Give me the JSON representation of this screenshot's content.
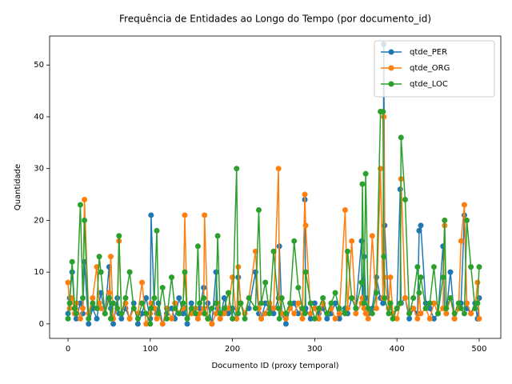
{
  "chart_data": {
    "type": "line",
    "title": "Frequência de Entidades ao Longo do Tempo (por documento_id)",
    "x_label": "Documento ID (proxy temporal)",
    "y_label": "Quantidade",
    "legend": "upper right",
    "xlim": [
      -22.4,
      526.3
    ],
    "ylim": [
      -2.8,
      55.6
    ],
    "xticks": [
      0,
      100,
      200,
      300,
      400,
      500
    ],
    "yticks": [
      0,
      10,
      20,
      30,
      40,
      50
    ],
    "x": [
      0,
      2,
      5,
      8,
      10,
      15,
      18,
      20,
      25,
      30,
      35,
      38,
      40,
      45,
      50,
      52,
      55,
      60,
      62,
      65,
      70,
      75,
      80,
      85,
      90,
      95,
      100,
      101,
      105,
      108,
      110,
      115,
      120,
      126,
      130,
      135,
      140,
      142,
      145,
      150,
      155,
      158,
      160,
      165,
      166,
      170,
      175,
      180,
      182,
      185,
      190,
      195,
      200,
      205,
      207,
      210,
      215,
      220,
      228,
      232,
      235,
      240,
      245,
      250,
      256,
      257,
      260,
      265,
      270,
      275,
      280,
      285,
      288,
      289,
      295,
      300,
      305,
      310,
      315,
      320,
      325,
      330,
      337,
      340,
      345,
      350,
      357,
      358,
      360,
      362,
      365,
      370,
      375,
      380,
      383,
      384,
      385,
      390,
      392,
      395,
      400,
      404,
      405,
      410,
      415,
      420,
      425,
      427,
      429,
      435,
      440,
      445,
      450,
      456,
      458,
      460,
      465,
      470,
      475,
      478,
      482,
      485,
      490,
      495,
      498,
      500
    ],
    "series": [
      {
        "name": "qtde_PER",
        "color": "#1f77b4",
        "values": [
          2,
          5,
          10,
          3,
          1,
          4,
          2,
          12,
          0,
          3,
          1,
          4,
          6,
          2,
          11,
          3,
          0,
          5,
          2,
          1,
          3,
          1,
          4,
          0,
          2,
          5,
          1,
          21,
          3,
          2,
          4,
          0,
          2,
          3,
          1,
          5,
          2,
          3,
          0,
          4,
          2,
          1,
          3,
          7,
          2,
          4,
          0,
          10,
          3,
          1,
          5,
          2,
          3,
          1,
          9,
          4,
          2,
          3,
          10,
          2,
          1,
          4,
          3,
          2,
          5,
          15,
          2,
          0,
          3,
          4,
          2,
          3,
          24,
          3,
          1,
          4,
          2,
          3,
          1,
          2,
          4,
          1,
          3,
          2,
          5,
          3,
          16,
          4,
          13,
          5,
          2,
          3,
          9,
          5,
          4,
          54,
          19,
          3,
          4,
          2,
          3,
          26,
          4,
          5,
          1,
          3,
          2,
          18,
          19,
          4,
          3,
          1,
          2,
          15,
          3,
          2,
          10,
          1,
          3,
          4,
          21,
          3,
          2,
          4,
          1,
          5
        ]
      },
      {
        "name": "qtde_ORG",
        "color": "#ff7f0e",
        "values": [
          8,
          3,
          5,
          2,
          4,
          1,
          3,
          24,
          2,
          5,
          11,
          4,
          3,
          2,
          6,
          13,
          1,
          3,
          16,
          2,
          4,
          1,
          3,
          2,
          8,
          0,
          2,
          4,
          3,
          1,
          2,
          0,
          3,
          1,
          4,
          2,
          3,
          21,
          1,
          2,
          3,
          1,
          2,
          3,
          21,
          1,
          0,
          2,
          4,
          1,
          2,
          3,
          9,
          1,
          11,
          4,
          2,
          5,
          14,
          3,
          1,
          2,
          4,
          3,
          30,
          5,
          2,
          1,
          3,
          2,
          4,
          1,
          25,
          19,
          2,
          3,
          1,
          4,
          2,
          3,
          1,
          2,
          22,
          3,
          16,
          2,
          4,
          5,
          3,
          2,
          1,
          17,
          3,
          30,
          5,
          40,
          9,
          3,
          9,
          2,
          1,
          4,
          28,
          5,
          2,
          3,
          1,
          6,
          2,
          3,
          1,
          4,
          2,
          3,
          19,
          2,
          5,
          1,
          3,
          16,
          23,
          4,
          2,
          3,
          8,
          1
        ]
      },
      {
        "name": "qtde_LOC",
        "color": "#2ca02c",
        "values": [
          1,
          4,
          12,
          3,
          2,
          23,
          5,
          20,
          1,
          4,
          3,
          13,
          10,
          2,
          5,
          1,
          4,
          3,
          17,
          2,
          5,
          10,
          3,
          1,
          4,
          2,
          0,
          3,
          5,
          18,
          2,
          7,
          1,
          9,
          3,
          2,
          4,
          10,
          1,
          3,
          2,
          15,
          4,
          5,
          2,
          1,
          3,
          4,
          17,
          2,
          3,
          6,
          1,
          30,
          2,
          4,
          1,
          5,
          3,
          22,
          4,
          8,
          2,
          14,
          3,
          1,
          5,
          2,
          4,
          16,
          7,
          3,
          2,
          10,
          4,
          1,
          3,
          5,
          2,
          4,
          6,
          3,
          2,
          14,
          5,
          3,
          8,
          27,
          4,
          29,
          3,
          2,
          6,
          41,
          41,
          13,
          5,
          2,
          4,
          1,
          3,
          4,
          36,
          24,
          2,
          5,
          11,
          6,
          9,
          3,
          4,
          11,
          2,
          9,
          20,
          3,
          5,
          2,
          4,
          3,
          2,
          20,
          11,
          3,
          4,
          11
        ]
      }
    ]
  }
}
